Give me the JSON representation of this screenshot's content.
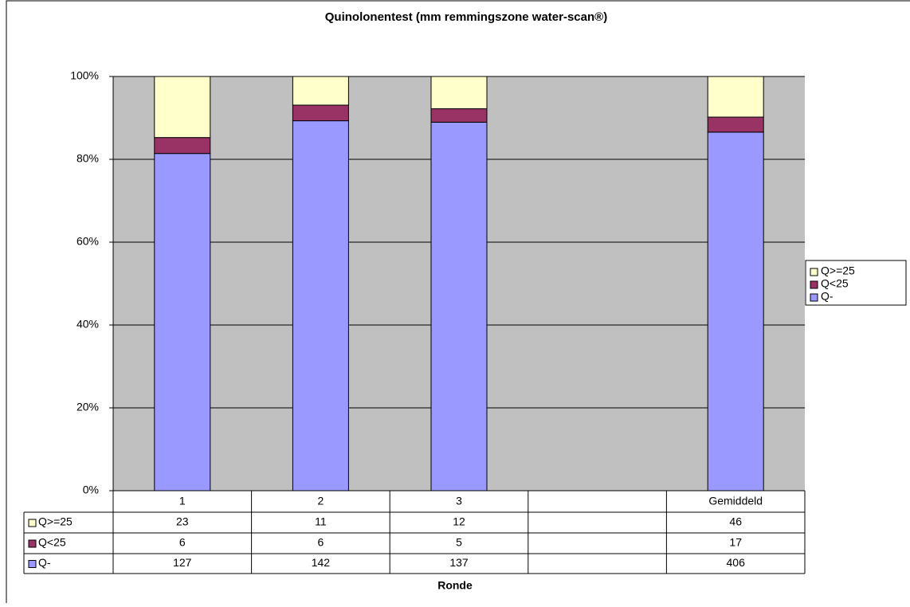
{
  "chart_data": {
    "type": "stacked_percent_bar",
    "title": "Quinolonentest (mm remmingszone water-scan®)",
    "x_label": "Ronde",
    "categories": [
      "1",
      "2",
      "3",
      null,
      "Gemiddeld"
    ],
    "series": [
      {
        "name": "Q-",
        "color": "#9999ff",
        "values": [
          127,
          142,
          137,
          null,
          406
        ]
      },
      {
        "name": "Q<25",
        "color": "#993366",
        "values": [
          6,
          6,
          5,
          null,
          17
        ]
      },
      {
        "name": "Q>=25",
        "color": "#ffffcc",
        "values": [
          23,
          11,
          12,
          null,
          46
        ]
      }
    ],
    "ylim": [
      0,
      100
    ],
    "yticks": [
      {
        "value": 0,
        "label": "0%"
      },
      {
        "value": 20,
        "label": "20%"
      },
      {
        "value": 40,
        "label": "40%"
      },
      {
        "value": 60,
        "label": "60%"
      },
      {
        "value": 80,
        "label": "80%"
      },
      {
        "value": 100,
        "label": "100%"
      }
    ],
    "grid": true,
    "legend": "right",
    "data_table": true
  }
}
